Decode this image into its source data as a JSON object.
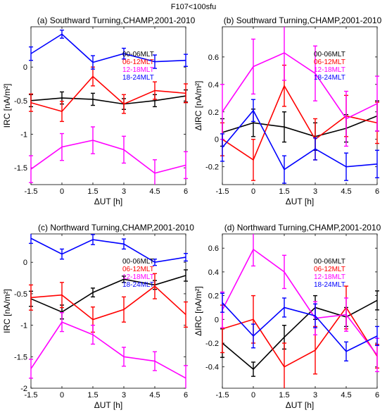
{
  "figure_title": "F107<100sfu",
  "colors": {
    "00-06MLT": "#000000",
    "06-12MLT": "#ff0000",
    "12-18MLT": "#ff00ff",
    "18-24MLT": "#0000ff"
  },
  "chart_data": [
    {
      "type": "line",
      "title": "(a) Southward Turning,CHAMP,2001-2010",
      "xlabel": "ΔUT [h]",
      "ylabel": "IRC [nA/m²]",
      "x": [
        -1.5,
        0,
        1.5,
        3,
        4.5,
        6
      ],
      "xticks": [
        "-1.5",
        "0",
        "1.5",
        "3",
        "4.5",
        "6"
      ],
      "xlim": [
        -1.5,
        6
      ],
      "ylim": [
        -1.75,
        0.6
      ],
      "yticks": [
        -1.5,
        -1,
        -0.5,
        0
      ],
      "ytick_labels": [
        "-1.5",
        "-1",
        "-0.5",
        "0"
      ],
      "legend_placement": "top-right",
      "series": [
        {
          "name": "00-06MLT",
          "values": [
            -0.5,
            -0.46,
            -0.48,
            -0.55,
            -0.5,
            -0.43
          ],
          "errors": [
            0.09,
            0.09,
            0.09,
            0.08,
            0.09,
            0.09
          ]
        },
        {
          "name": "06-12MLT",
          "values": [
            -0.53,
            -0.66,
            -0.14,
            -0.55,
            -0.35,
            -0.39
          ],
          "errors": [
            0.13,
            0.15,
            0.14,
            0.14,
            0.13,
            0.14
          ]
        },
        {
          "name": "12-18MLT",
          "values": [
            -1.52,
            -1.19,
            -1.09,
            -1.23,
            -1.58,
            -1.46
          ],
          "errors": [
            0.2,
            0.2,
            0.2,
            0.2,
            0.2,
            0.2
          ]
        },
        {
          "name": "18-24MLT",
          "values": [
            0.2,
            0.49,
            0.07,
            0.2,
            0.08,
            0.1
          ],
          "errors": [
            0.1,
            0.06,
            0.1,
            0.08,
            0.1,
            0.09
          ]
        }
      ]
    },
    {
      "type": "line",
      "title": "(b) Southward Turning,CHAMP,2001-2010",
      "xlabel": "ΔUT [h]",
      "ylabel": "ΔIRC [nA/m²]",
      "x": [
        -1.5,
        0,
        1.5,
        3,
        4.5,
        6
      ],
      "xticks": [
        "-1.5",
        "0",
        "1.5",
        "3",
        "4.5",
        "6"
      ],
      "xlim": [
        -1.5,
        6
      ],
      "ylim": [
        -0.33,
        0.82
      ],
      "yticks": [
        -0.2,
        0,
        0.2,
        0.4,
        0.6
      ],
      "ytick_labels": [
        "-0.2",
        "0",
        "0.2",
        "0.4",
        "0.6"
      ],
      "legend_placement": "top-right",
      "series": [
        {
          "name": "00-06MLT",
          "values": [
            0.05,
            0.12,
            0.09,
            0.02,
            0.08,
            0.17
          ],
          "errors": [
            0.1,
            0.1,
            0.11,
            0.1,
            0.1,
            0.11
          ]
        },
        {
          "name": "06-12MLT",
          "values": [
            0.0,
            -0.15,
            0.39,
            0.0,
            0.17,
            0.12
          ],
          "errors": [
            0.12,
            0.15,
            0.15,
            0.15,
            0.15,
            0.15
          ]
        },
        {
          "name": "12-18MLT",
          "values": [
            0.2,
            0.53,
            0.63,
            0.48,
            0.15,
            0.26
          ],
          "errors": [
            0.2,
            0.2,
            0.2,
            0.2,
            0.2,
            0.2
          ]
        },
        {
          "name": "18-24MLT",
          "values": [
            -0.06,
            0.21,
            -0.22,
            -0.07,
            -0.2,
            -0.18
          ],
          "errors": [
            0.1,
            0.08,
            0.1,
            0.08,
            0.1,
            0.1
          ]
        }
      ]
    },
    {
      "type": "line",
      "title": "(c) Northward Turning,CHAMP,2001-2010",
      "xlabel": "ΔUT [h]",
      "ylabel": "IRC [nA/m²]",
      "x": [
        -1.5,
        0,
        1.5,
        3,
        4.5,
        6
      ],
      "xticks": [
        "-1.5",
        "0",
        "1.5",
        "3",
        "4.5",
        "6"
      ],
      "xlim": [
        -1.5,
        6
      ],
      "ylim": [
        -2,
        0.45
      ],
      "yticks": [
        -2,
        -1.5,
        -1,
        -0.5,
        0
      ],
      "ytick_labels": [
        "-2",
        "-1.5",
        "-1",
        "-0.5",
        "0"
      ],
      "legend_placement": "top-right",
      "series": [
        {
          "name": "00-06MLT",
          "values": [
            -0.58,
            -0.79,
            -0.48,
            -0.27,
            -0.36,
            -0.21
          ],
          "errors": [
            0.12,
            0.11,
            0.07,
            0.05,
            0.07,
            0.09
          ]
        },
        {
          "name": "06-12MLT",
          "values": [
            -0.56,
            -0.52,
            -0.91,
            -0.75,
            -0.38,
            -0.83
          ],
          "errors": [
            0.2,
            0.2,
            0.2,
            0.2,
            0.2,
            0.2
          ]
        },
        {
          "name": "12-18MLT",
          "values": [
            -1.69,
            -0.95,
            -1.15,
            -1.5,
            -1.57,
            -1.84
          ],
          "errors": [
            0.15,
            0.15,
            0.15,
            0.15,
            0.15,
            0.2
          ]
        },
        {
          "name": "18-24MLT",
          "values": [
            0.38,
            0.13,
            0.36,
            0.29,
            0.0,
            0.08
          ],
          "errors": [
            0.08,
            0.08,
            0.08,
            0.08,
            0.05,
            0.06
          ]
        }
      ]
    },
    {
      "type": "line",
      "title": "(d) Northward Turning,CHAMP,2001-2010",
      "xlabel": "ΔUT [h]",
      "ylabel": "ΔIRC [nA/m²]",
      "x": [
        -1.5,
        0,
        1.5,
        3,
        4.5,
        6
      ],
      "xticks": [
        "-1.5",
        "0",
        "1.5",
        "3",
        "4.5",
        "6"
      ],
      "xlim": [
        -1.5,
        6
      ],
      "ylim": [
        -0.58,
        0.72
      ],
      "yticks": [
        -0.4,
        -0.2,
        0,
        0.2,
        0.4,
        0.6
      ],
      "ytick_labels": [
        "-0.4",
        "-0.2",
        "0",
        "0.2",
        "0.4",
        "0.6"
      ],
      "legend_placement": "top-right",
      "series": [
        {
          "name": "00-06MLT",
          "values": [
            -0.2,
            -0.42,
            -0.15,
            0.1,
            0.02,
            0.16
          ],
          "errors": [
            0.12,
            0.06,
            0.1,
            0.1,
            0.08,
            0.08
          ]
        },
        {
          "name": "06-12MLT",
          "values": [
            -0.08,
            0.0,
            -0.4,
            -0.26,
            0.1,
            -0.31
          ],
          "errors": [
            0.2,
            0.2,
            0.2,
            0.2,
            0.18,
            0.1
          ]
        },
        {
          "name": "12-18MLT",
          "values": [
            0.08,
            0.59,
            0.4,
            0.01,
            0.04,
            -0.3
          ],
          "errors": [
            0.15,
            0.14,
            0.14,
            0.14,
            0.14,
            0.14
          ]
        },
        {
          "name": "18-24MLT",
          "values": [
            0.14,
            -0.14,
            0.1,
            0.03,
            -0.27,
            -0.14
          ],
          "errors": [
            0.08,
            0.1,
            0.08,
            0.1,
            0.08,
            0.08
          ]
        }
      ]
    }
  ]
}
